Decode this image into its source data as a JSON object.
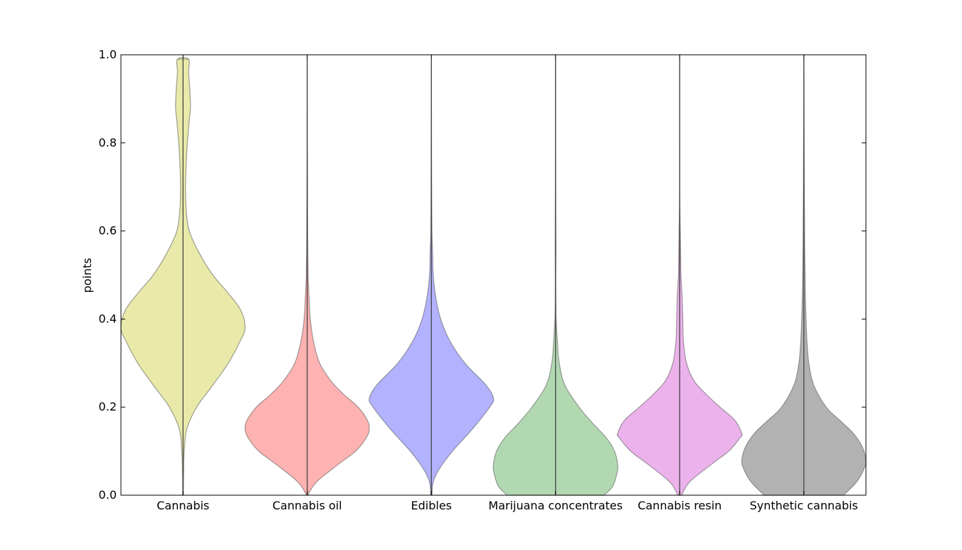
{
  "chart_data": {
    "type": "violin",
    "title": "",
    "xlabel": "",
    "ylabel": "points",
    "ylim": [
      0.0,
      1.0
    ],
    "yticks": [
      "0.0",
      "0.2",
      "0.4",
      "0.6",
      "0.8",
      "1.0"
    ],
    "grid": false,
    "legend": "none",
    "categories": [
      "Cannabis",
      "Cannabis oil",
      "Edibles",
      "Marijuana concentrates",
      "Cannabis resin",
      "Synthetic cannabis"
    ],
    "series": [
      {
        "category": "Cannabis",
        "color": "#d4d45a",
        "range": [
          0.0,
          0.99
        ],
        "density": [
          [
            0.0,
            0.005
          ],
          [
            0.05,
            0.01
          ],
          [
            0.1,
            0.02
          ],
          [
            0.15,
            0.06
          ],
          [
            0.2,
            0.22
          ],
          [
            0.25,
            0.48
          ],
          [
            0.3,
            0.73
          ],
          [
            0.35,
            0.92
          ],
          [
            0.38,
            1.0
          ],
          [
            0.42,
            0.93
          ],
          [
            0.46,
            0.72
          ],
          [
            0.5,
            0.48
          ],
          [
            0.55,
            0.26
          ],
          [
            0.6,
            0.1
          ],
          [
            0.65,
            0.05
          ],
          [
            0.7,
            0.04
          ],
          [
            0.75,
            0.05
          ],
          [
            0.8,
            0.07
          ],
          [
            0.85,
            0.1
          ],
          [
            0.88,
            0.12
          ],
          [
            0.92,
            0.11
          ],
          [
            0.96,
            0.09
          ],
          [
            0.99,
            0.09
          ]
        ]
      },
      {
        "category": "Cannabis oil",
        "color": "#ff6b6b",
        "range": [
          0.0,
          0.99
        ],
        "density": [
          [
            0.0,
            0.01
          ],
          [
            0.03,
            0.15
          ],
          [
            0.07,
            0.5
          ],
          [
            0.1,
            0.78
          ],
          [
            0.13,
            0.95
          ],
          [
            0.15,
            1.0
          ],
          [
            0.17,
            0.97
          ],
          [
            0.2,
            0.82
          ],
          [
            0.23,
            0.58
          ],
          [
            0.26,
            0.38
          ],
          [
            0.3,
            0.2
          ],
          [
            0.35,
            0.1
          ],
          [
            0.4,
            0.05
          ],
          [
            0.45,
            0.03
          ],
          [
            0.5,
            0.015
          ],
          [
            0.6,
            0.008
          ],
          [
            0.7,
            0.005
          ],
          [
            0.8,
            0.003
          ],
          [
            0.9,
            0.002
          ],
          [
            0.99,
            0.002
          ]
        ]
      },
      {
        "category": "Edibles",
        "color": "#6b6bff",
        "range": [
          0.0,
          0.99
        ],
        "density": [
          [
            0.0,
            0.01
          ],
          [
            0.03,
            0.03
          ],
          [
            0.06,
            0.13
          ],
          [
            0.1,
            0.34
          ],
          [
            0.15,
            0.66
          ],
          [
            0.2,
            0.94
          ],
          [
            0.22,
            1.0
          ],
          [
            0.25,
            0.88
          ],
          [
            0.3,
            0.54
          ],
          [
            0.35,
            0.3
          ],
          [
            0.4,
            0.15
          ],
          [
            0.45,
            0.07
          ],
          [
            0.5,
            0.03
          ],
          [
            0.55,
            0.02
          ],
          [
            0.6,
            0.01
          ],
          [
            0.7,
            0.005
          ],
          [
            0.8,
            0.003
          ],
          [
            0.9,
            0.002
          ],
          [
            0.99,
            0.002
          ]
        ]
      },
      {
        "category": "Marijuana concentrates",
        "color": "#6bb56b",
        "range": [
          0.0,
          0.99
        ],
        "density": [
          [
            0.0,
            0.78
          ],
          [
            0.02,
            0.92
          ],
          [
            0.05,
            0.99
          ],
          [
            0.07,
            1.0
          ],
          [
            0.1,
            0.95
          ],
          [
            0.13,
            0.82
          ],
          [
            0.16,
            0.62
          ],
          [
            0.2,
            0.38
          ],
          [
            0.25,
            0.15
          ],
          [
            0.3,
            0.06
          ],
          [
            0.35,
            0.03
          ],
          [
            0.4,
            0.01
          ],
          [
            0.45,
            0.005
          ],
          [
            0.5,
            0.004
          ],
          [
            0.55,
            0.006
          ],
          [
            0.6,
            0.005
          ],
          [
            0.7,
            0.003
          ],
          [
            0.8,
            0.002
          ],
          [
            0.9,
            0.002
          ],
          [
            0.99,
            0.002
          ]
        ]
      },
      {
        "category": "Cannabis resin",
        "color": "#d86bd8",
        "range": [
          0.0,
          0.99
        ],
        "density": [
          [
            0.0,
            0.03
          ],
          [
            0.03,
            0.16
          ],
          [
            0.07,
            0.51
          ],
          [
            0.1,
            0.79
          ],
          [
            0.13,
            0.97
          ],
          [
            0.14,
            1.0
          ],
          [
            0.17,
            0.89
          ],
          [
            0.2,
            0.65
          ],
          [
            0.23,
            0.42
          ],
          [
            0.26,
            0.23
          ],
          [
            0.3,
            0.11
          ],
          [
            0.35,
            0.06
          ],
          [
            0.4,
            0.05
          ],
          [
            0.45,
            0.04
          ],
          [
            0.5,
            0.02
          ],
          [
            0.55,
            0.015
          ],
          [
            0.6,
            0.01
          ],
          [
            0.65,
            0.004
          ],
          [
            0.7,
            0.002
          ],
          [
            0.8,
            0.002
          ],
          [
            0.9,
            0.002
          ],
          [
            0.99,
            0.002
          ]
        ]
      },
      {
        "category": "Synthetic cannabis",
        "color": "#6b6b6b",
        "range": [
          0.0,
          0.99
        ],
        "density": [
          [
            0.0,
            0.64
          ],
          [
            0.03,
            0.85
          ],
          [
            0.06,
            0.97
          ],
          [
            0.08,
            1.0
          ],
          [
            0.11,
            0.94
          ],
          [
            0.14,
            0.8
          ],
          [
            0.17,
            0.58
          ],
          [
            0.2,
            0.36
          ],
          [
            0.25,
            0.16
          ],
          [
            0.3,
            0.08
          ],
          [
            0.35,
            0.05
          ],
          [
            0.4,
            0.035
          ],
          [
            0.45,
            0.025
          ],
          [
            0.5,
            0.02
          ],
          [
            0.55,
            0.015
          ],
          [
            0.6,
            0.012
          ],
          [
            0.7,
            0.008
          ],
          [
            0.8,
            0.005
          ],
          [
            0.9,
            0.003
          ],
          [
            0.99,
            0.002
          ]
        ]
      }
    ]
  }
}
